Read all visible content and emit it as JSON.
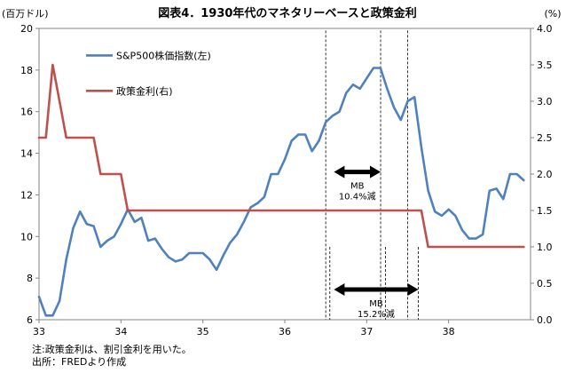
{
  "chart_data": {
    "type": "line",
    "title": "図表4．1930年代のマネタリーベースと政策金利",
    "ylabel_left": "(百万ドル)",
    "ylabel_right": "(%)",
    "x_tick_labels": [
      "33",
      "34",
      "35",
      "36",
      "37",
      "38"
    ],
    "x_tick_values": [
      33,
      34,
      35,
      36,
      37,
      38
    ],
    "xlim": [
      33,
      39
    ],
    "y_left": {
      "min": 6,
      "max": 20,
      "ticks": [
        6,
        8,
        10,
        12,
        14,
        16,
        18,
        20
      ],
      "tick_labels": [
        "6",
        "8",
        "10",
        "12",
        "14",
        "16",
        "18",
        "20"
      ]
    },
    "y_right": {
      "min": 0,
      "max": 4,
      "ticks": [
        0,
        0.5,
        1,
        1.5,
        2,
        2.5,
        3,
        3.5,
        4
      ],
      "tick_labels": [
        "0.0",
        "0.5",
        "1.0",
        "1.5",
        "2.0",
        "2.5",
        "3.0",
        "3.5",
        "4.0"
      ]
    },
    "series": [
      {
        "name": "S&P500株価指数(左)",
        "axis": "left",
        "color": "#4F81BD",
        "x": [
          33.0,
          33.083,
          33.167,
          33.25,
          33.333,
          33.417,
          33.5,
          33.583,
          33.667,
          33.75,
          33.833,
          33.917,
          34.0,
          34.083,
          34.167,
          34.25,
          34.333,
          34.417,
          34.5,
          34.583,
          34.667,
          34.75,
          34.833,
          34.917,
          35.0,
          35.083,
          35.167,
          35.25,
          35.333,
          35.417,
          35.5,
          35.583,
          35.667,
          35.75,
          35.833,
          35.917,
          36.0,
          36.083,
          36.167,
          36.25,
          36.333,
          36.417,
          36.5,
          36.583,
          36.667,
          36.75,
          36.833,
          36.917,
          37.0,
          37.083,
          37.167,
          37.25,
          37.333,
          37.417,
          37.5,
          37.583,
          37.667,
          37.75,
          37.833,
          37.917,
          38.0,
          38.083,
          38.167,
          38.25,
          38.333,
          38.417,
          38.5,
          38.583,
          38.667,
          38.75,
          38.833,
          38.917
        ],
        "values": [
          7.1,
          6.2,
          6.2,
          6.9,
          8.9,
          10.4,
          11.2,
          10.6,
          10.5,
          9.5,
          9.8,
          10.0,
          10.6,
          11.3,
          10.7,
          10.9,
          9.8,
          9.9,
          9.4,
          9.0,
          8.8,
          8.9,
          9.2,
          9.2,
          9.2,
          8.9,
          8.4,
          9.1,
          9.7,
          10.1,
          10.7,
          11.4,
          11.6,
          11.9,
          13.0,
          13.0,
          13.7,
          14.6,
          14.9,
          14.9,
          14.1,
          14.6,
          15.5,
          15.8,
          16.0,
          16.9,
          17.3,
          17.1,
          17.6,
          18.1,
          18.1,
          17.1,
          16.2,
          15.6,
          16.5,
          16.7,
          14.3,
          12.2,
          11.2,
          11.0,
          11.3,
          11.0,
          10.3,
          9.9,
          9.9,
          10.1,
          12.2,
          12.3,
          11.8,
          13.0,
          13.0,
          12.7
        ]
      },
      {
        "name": "政策金利(右)",
        "axis": "right",
        "color": "#C0504D",
        "x": [
          33.0,
          33.083,
          33.167,
          33.25,
          33.333,
          33.417,
          33.5,
          33.583,
          33.667,
          33.75,
          33.833,
          33.917,
          34.0,
          34.083,
          34.167,
          34.25,
          34.333,
          34.417,
          34.5,
          34.583,
          34.667,
          34.75,
          34.833,
          34.917,
          35.0,
          35.083,
          35.167,
          35.25,
          35.333,
          35.417,
          35.5,
          35.583,
          35.667,
          35.75,
          35.833,
          35.917,
          36.0,
          36.083,
          36.167,
          36.25,
          36.333,
          36.417,
          36.5,
          36.583,
          36.667,
          36.75,
          36.833,
          36.917,
          37.0,
          37.083,
          37.167,
          37.25,
          37.333,
          37.417,
          37.5,
          37.583,
          37.667,
          37.75,
          37.833,
          37.917,
          38.0,
          38.083,
          38.167,
          38.25,
          38.333,
          38.417,
          38.5,
          38.583,
          38.667,
          38.75,
          38.833,
          38.917
        ],
        "values": [
          2.5,
          2.5,
          3.5,
          3.0,
          2.5,
          2.5,
          2.5,
          2.5,
          2.5,
          2.0,
          2.0,
          2.0,
          2.0,
          1.5,
          1.5,
          1.5,
          1.5,
          1.5,
          1.5,
          1.5,
          1.5,
          1.5,
          1.5,
          1.5,
          1.5,
          1.5,
          1.5,
          1.5,
          1.5,
          1.5,
          1.5,
          1.5,
          1.5,
          1.5,
          1.5,
          1.5,
          1.5,
          1.5,
          1.5,
          1.5,
          1.5,
          1.5,
          1.5,
          1.5,
          1.5,
          1.5,
          1.5,
          1.5,
          1.5,
          1.5,
          1.5,
          1.5,
          1.5,
          1.5,
          1.5,
          1.5,
          1.5,
          1.0,
          1.0,
          1.0,
          1.0,
          1.0,
          1.0,
          1.0,
          1.0,
          1.0,
          1.0,
          1.0,
          1.0,
          1.0,
          1.0,
          1.0
        ]
      }
    ],
    "annotations": [
      {
        "type": "double-arrow",
        "label": "MB",
        "sub": "10.4%減",
        "x_from": 36.6,
        "x_to": 37.17,
        "y_left": 13.1
      },
      {
        "type": "double-arrow",
        "label": "MB",
        "sub": "15.2%減",
        "x_from": 36.6,
        "x_to": 37.63,
        "y_left": 7.45
      }
    ],
    "vlines": [
      {
        "x": 36.5,
        "y_top_left": 19.9
      },
      {
        "x": 37.17,
        "y_top_left": 19.9
      },
      {
        "x": 37.5,
        "y_top_left": 19.9
      },
      {
        "x": 36.55,
        "y_top_left": 9.5
      },
      {
        "x": 37.23,
        "y_top_left": 9.5
      },
      {
        "x": 37.63,
        "y_top_left": 9.5
      }
    ]
  },
  "footnotes": {
    "note": "注:政策金利は、割引金利を用いた。",
    "source": "出所：FREDより作成"
  }
}
